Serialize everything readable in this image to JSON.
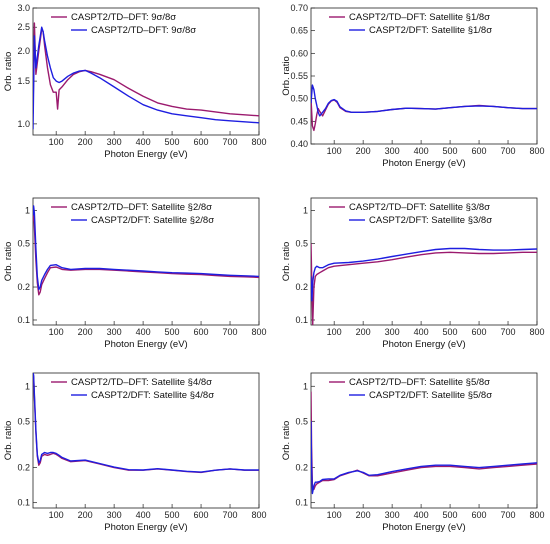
{
  "colors": {
    "series_a": "#9b1a6e",
    "series_b": "#1e1ee0"
  },
  "chart_data": [
    {
      "type": "line",
      "scale": "log",
      "xlabel": "Photon Energy (eV)",
      "ylabel": "Orb. ratio",
      "xlim": [
        20,
        800
      ],
      "ylim": [
        0.9,
        3.0
      ],
      "xticks": [
        100,
        200,
        300,
        400,
        500,
        600,
        700,
        800
      ],
      "yticks": [
        1.0,
        1.5,
        2.0,
        2.5,
        3.0
      ],
      "ytick_labels": [
        "1.0",
        "1.5",
        "2.0",
        "2.5",
        "3.0"
      ],
      "legend": "top-right",
      "series": [
        {
          "name": "CASPT2/TD–DFT: 9σ/8σ",
          "x": [
            20,
            25,
            30,
            40,
            50,
            55,
            60,
            70,
            80,
            90,
            100,
            105,
            110,
            120,
            140,
            160,
            180,
            200,
            220,
            250,
            300,
            350,
            400,
            450,
            500,
            550,
            600,
            650,
            700,
            750,
            800
          ],
          "y": [
            1.1,
            2.6,
            1.6,
            2.0,
            2.45,
            2.4,
            2.1,
            1.7,
            1.45,
            1.35,
            1.35,
            1.15,
            1.38,
            1.42,
            1.52,
            1.6,
            1.64,
            1.66,
            1.64,
            1.6,
            1.52,
            1.4,
            1.3,
            1.22,
            1.18,
            1.15,
            1.14,
            1.12,
            1.1,
            1.09,
            1.08
          ]
        },
        {
          "name": "CASPT2/TD–DFT: 9σ/8σ",
          "x": [
            20,
            25,
            30,
            40,
            50,
            55,
            60,
            70,
            80,
            90,
            100,
            110,
            120,
            140,
            160,
            180,
            200,
            220,
            250,
            300,
            350,
            400,
            450,
            500,
            550,
            600,
            650,
            700,
            750,
            800
          ],
          "y": [
            0.95,
            2.3,
            1.7,
            2.1,
            2.5,
            2.4,
            2.2,
            1.9,
            1.7,
            1.55,
            1.5,
            1.48,
            1.5,
            1.57,
            1.62,
            1.65,
            1.66,
            1.62,
            1.55,
            1.42,
            1.3,
            1.2,
            1.14,
            1.1,
            1.08,
            1.06,
            1.04,
            1.03,
            1.02,
            1.01
          ]
        }
      ]
    },
    {
      "type": "line",
      "scale": "linear",
      "xlabel": "Photon Energy (eV)",
      "ylabel": "Orb. ratio",
      "xlim": [
        20,
        800
      ],
      "ylim": [
        0.4,
        0.7
      ],
      "xticks": [
        100,
        200,
        300,
        400,
        500,
        600,
        700,
        800
      ],
      "yticks": [
        0.4,
        0.45,
        0.5,
        0.55,
        0.6,
        0.65,
        0.7
      ],
      "ytick_labels": [
        "0.40",
        "0.45",
        "0.50",
        "0.55",
        "0.60",
        "0.65",
        "0.70"
      ],
      "legend": "top-right",
      "series": [
        {
          "name": "CASPT2/TD–DFT: Satellite §1/8σ",
          "x": [
            20,
            25,
            30,
            35,
            40,
            45,
            50,
            60,
            70,
            80,
            90,
            100,
            110,
            120,
            140,
            160,
            200,
            250,
            300,
            350,
            400,
            450,
            500,
            550,
            600,
            650,
            700,
            750,
            800
          ],
          "y": [
            0.5,
            0.44,
            0.43,
            0.445,
            0.465,
            0.478,
            0.472,
            0.462,
            0.475,
            0.488,
            0.495,
            0.497,
            0.492,
            0.48,
            0.472,
            0.47,
            0.47,
            0.472,
            0.476,
            0.479,
            0.478,
            0.477,
            0.48,
            0.483,
            0.485,
            0.483,
            0.48,
            0.478,
            0.478
          ]
        },
        {
          "name": "CASPT2/DFT: Satellite §1/8σ",
          "x": [
            20,
            25,
            30,
            35,
            40,
            45,
            50,
            60,
            70,
            80,
            90,
            100,
            110,
            120,
            140,
            160,
            200,
            250,
            300,
            350,
            400,
            450,
            500,
            550,
            600,
            650,
            700,
            750,
            800
          ],
          "y": [
            0.49,
            0.53,
            0.52,
            0.5,
            0.485,
            0.47,
            0.462,
            0.47,
            0.478,
            0.49,
            0.496,
            0.498,
            0.494,
            0.482,
            0.473,
            0.47,
            0.47,
            0.472,
            0.476,
            0.479,
            0.478,
            0.477,
            0.48,
            0.483,
            0.484,
            0.483,
            0.48,
            0.478,
            0.478
          ]
        }
      ]
    },
    {
      "type": "line",
      "scale": "log",
      "xlabel": "Photon Energy (eV)",
      "ylabel": "Orb. ratio",
      "xlim": [
        20,
        800
      ],
      "ylim": [
        0.09,
        1.3
      ],
      "xticks": [
        100,
        200,
        300,
        400,
        500,
        600,
        700,
        800
      ],
      "yticks": [
        0.1,
        0.2,
        0.5,
        1.0
      ],
      "ytick_labels": [
        "0.1",
        "0.2",
        "0.5",
        "1"
      ],
      "legend": "top-right",
      "series": [
        {
          "name": "CASPT2/TD–DFT: Satellite §2/8σ",
          "x": [
            20,
            22,
            25,
            30,
            35,
            40,
            45,
            50,
            60,
            70,
            80,
            100,
            120,
            150,
            200,
            250,
            300,
            350,
            400,
            450,
            500,
            550,
            600,
            650,
            700,
            750,
            800
          ],
          "y": [
            0.8,
            1.05,
            0.7,
            0.35,
            0.22,
            0.17,
            0.18,
            0.21,
            0.24,
            0.27,
            0.3,
            0.305,
            0.29,
            0.285,
            0.29,
            0.29,
            0.285,
            0.28,
            0.275,
            0.27,
            0.265,
            0.262,
            0.26,
            0.255,
            0.25,
            0.248,
            0.245
          ]
        },
        {
          "name": "CASPT2/DFT: Satellite §2/8σ",
          "x": [
            20,
            22,
            25,
            30,
            35,
            40,
            45,
            50,
            60,
            70,
            80,
            100,
            120,
            150,
            200,
            250,
            300,
            350,
            400,
            450,
            500,
            550,
            600,
            650,
            700,
            750,
            800
          ],
          "y": [
            0.9,
            1.1,
            0.95,
            0.45,
            0.25,
            0.19,
            0.2,
            0.23,
            0.26,
            0.29,
            0.315,
            0.32,
            0.3,
            0.29,
            0.295,
            0.295,
            0.29,
            0.285,
            0.28,
            0.275,
            0.27,
            0.268,
            0.265,
            0.26,
            0.256,
            0.253,
            0.25
          ]
        }
      ]
    },
    {
      "type": "line",
      "scale": "log",
      "xlabel": "Photon Energy (eV)",
      "ylabel": "Orb. ratio",
      "xlim": [
        20,
        800
      ],
      "ylim": [
        0.09,
        1.3
      ],
      "xticks": [
        100,
        200,
        300,
        400,
        500,
        600,
        700,
        800
      ],
      "yticks": [
        0.1,
        0.2,
        0.5,
        1.0
      ],
      "ytick_labels": [
        "0.1",
        "0.2",
        "0.5",
        "1"
      ],
      "legend": "top-right",
      "series": [
        {
          "name": "CASPT2/TD–DFT: Satellite §3/8σ",
          "x": [
            20,
            23,
            26,
            30,
            35,
            40,
            50,
            60,
            80,
            100,
            150,
            200,
            250,
            300,
            350,
            400,
            450,
            500,
            550,
            600,
            650,
            700,
            750,
            800
          ],
          "y": [
            0.5,
            0.2,
            0.09,
            0.2,
            0.25,
            0.26,
            0.27,
            0.28,
            0.3,
            0.31,
            0.32,
            0.33,
            0.34,
            0.355,
            0.375,
            0.395,
            0.41,
            0.415,
            0.41,
            0.405,
            0.405,
            0.41,
            0.415,
            0.415
          ]
        },
        {
          "name": "CASPT2/DFT: Satellite §3/8σ",
          "x": [
            20,
            23,
            26,
            30,
            35,
            40,
            50,
            60,
            80,
            100,
            150,
            200,
            250,
            300,
            350,
            400,
            450,
            500,
            550,
            600,
            650,
            700,
            750,
            800
          ],
          "y": [
            0.25,
            0.15,
            0.22,
            0.27,
            0.3,
            0.31,
            0.3,
            0.3,
            0.32,
            0.33,
            0.335,
            0.345,
            0.36,
            0.38,
            0.4,
            0.42,
            0.44,
            0.45,
            0.45,
            0.44,
            0.435,
            0.435,
            0.44,
            0.445
          ]
        }
      ]
    },
    {
      "type": "line",
      "scale": "log",
      "xlabel": "Photon Energy (eV)",
      "ylabel": "Orb. ratio",
      "xlim": [
        20,
        800
      ],
      "ylim": [
        0.09,
        1.3
      ],
      "xticks": [
        100,
        200,
        300,
        400,
        500,
        600,
        700,
        800
      ],
      "yticks": [
        0.1,
        0.2,
        0.5,
        1.0
      ],
      "ytick_labels": [
        "0.1",
        "0.2",
        "0.5",
        "1"
      ],
      "legend": "top-right",
      "series": [
        {
          "name": "CASPT2/TD–DFT: Satellite §4/8σ",
          "x": [
            20,
            22,
            25,
            30,
            35,
            40,
            45,
            50,
            60,
            70,
            80,
            90,
            100,
            110,
            120,
            150,
            200,
            250,
            300,
            350,
            400,
            450,
            500,
            550,
            600,
            650,
            700,
            750,
            800
          ],
          "y": [
            1.3,
            1.2,
            0.8,
            0.4,
            0.25,
            0.21,
            0.22,
            0.25,
            0.26,
            0.255,
            0.26,
            0.265,
            0.26,
            0.25,
            0.24,
            0.225,
            0.23,
            0.215,
            0.2,
            0.19,
            0.19,
            0.195,
            0.19,
            0.185,
            0.182,
            0.19,
            0.195,
            0.19,
            0.19
          ]
        },
        {
          "name": "CASPT2/DFT: Satellite §4/8σ",
          "x": [
            20,
            22,
            25,
            30,
            35,
            40,
            45,
            50,
            60,
            70,
            80,
            90,
            100,
            110,
            120,
            150,
            200,
            250,
            300,
            350,
            400,
            450,
            500,
            550,
            600,
            650,
            700,
            750,
            800
          ],
          "y": [
            1.3,
            1.25,
            0.85,
            0.42,
            0.26,
            0.22,
            0.23,
            0.26,
            0.27,
            0.265,
            0.27,
            0.27,
            0.265,
            0.255,
            0.245,
            0.228,
            0.232,
            0.217,
            0.202,
            0.192,
            0.191,
            0.196,
            0.191,
            0.186,
            0.183,
            0.19,
            0.195,
            0.191,
            0.191
          ]
        }
      ]
    },
    {
      "type": "line",
      "scale": "log",
      "xlabel": "Photon Energy (eV)",
      "ylabel": "Orb. ratio",
      "xlim": [
        20,
        800
      ],
      "ylim": [
        0.09,
        1.3
      ],
      "xticks": [
        100,
        200,
        300,
        400,
        500,
        600,
        700,
        800
      ],
      "yticks": [
        0.1,
        0.2,
        0.5,
        1.0
      ],
      "ytick_labels": [
        "0.1",
        "0.2",
        "0.5",
        "1"
      ],
      "legend": "top-right",
      "series": [
        {
          "name": "CASPT2/TD–DFT: Satellite §5/8σ",
          "x": [
            20,
            22,
            25,
            30,
            35,
            40,
            50,
            60,
            80,
            100,
            120,
            150,
            180,
            200,
            220,
            250,
            300,
            350,
            400,
            450,
            500,
            550,
            600,
            650,
            700,
            750,
            800
          ],
          "y": [
            0.9,
            0.3,
            0.14,
            0.13,
            0.14,
            0.145,
            0.15,
            0.155,
            0.155,
            0.158,
            0.17,
            0.18,
            0.19,
            0.18,
            0.17,
            0.17,
            0.18,
            0.19,
            0.2,
            0.205,
            0.205,
            0.2,
            0.195,
            0.2,
            0.205,
            0.21,
            0.215
          ]
        },
        {
          "name": "CASPT2/DFT: Satellite §5/8σ",
          "x": [
            20,
            22,
            25,
            30,
            35,
            40,
            50,
            60,
            80,
            100,
            120,
            150,
            180,
            200,
            220,
            250,
            300,
            350,
            400,
            450,
            500,
            550,
            600,
            650,
            700,
            750,
            800
          ],
          "y": [
            0.5,
            0.2,
            0.12,
            0.14,
            0.15,
            0.15,
            0.152,
            0.158,
            0.16,
            0.16,
            0.172,
            0.182,
            0.188,
            0.182,
            0.172,
            0.174,
            0.185,
            0.195,
            0.205,
            0.21,
            0.21,
            0.205,
            0.2,
            0.205,
            0.21,
            0.215,
            0.22
          ]
        }
      ]
    }
  ]
}
